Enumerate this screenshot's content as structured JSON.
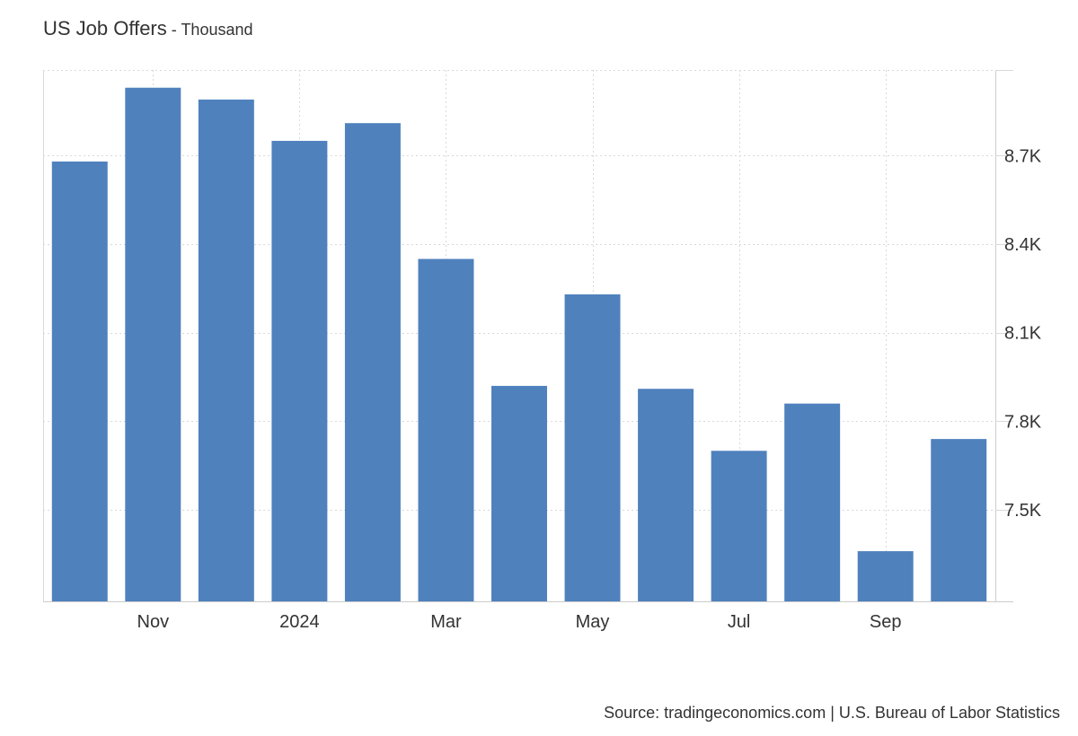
{
  "title": "US Job Offers",
  "subtitle": "Thousand",
  "subtitle_separator": " - ",
  "source": "Source: tradingeconomics.com | U.S. Bureau of Labor Statistics",
  "colors": {
    "bar": "#4f81bd",
    "grid": "#d9d9d9",
    "axis": "#cccccc",
    "text": "#333333"
  },
  "chart_data": {
    "type": "bar",
    "title": "US Job Offers",
    "subtitle": "Thousand",
    "x": [
      "2023-10",
      "2023-11",
      "2023-12",
      "2024-01",
      "2024-02",
      "2024-03",
      "2024-04",
      "2024-05",
      "2024-06",
      "2024-07",
      "2024-08",
      "2024-09",
      "2024-10"
    ],
    "values": [
      8.68,
      8.93,
      8.89,
      8.75,
      8.81,
      8.35,
      7.92,
      8.23,
      7.91,
      7.7,
      7.86,
      7.36,
      7.74
    ],
    "x_tick_labels": [
      {
        "x": "2023-11",
        "label": "Nov"
      },
      {
        "x": "2024-01",
        "label": "2024"
      },
      {
        "x": "2024-03",
        "label": "Mar"
      },
      {
        "x": "2024-05",
        "label": "May"
      },
      {
        "x": "2024-07",
        "label": "Jul"
      },
      {
        "x": "2024-09",
        "label": "Sep"
      }
    ],
    "y_ticks": [
      7.5,
      7.8,
      8.1,
      8.4,
      8.7
    ],
    "y_tick_labels": [
      "7.5K",
      "7.8K",
      "8.1K",
      "8.4K",
      "8.7K"
    ],
    "ylim": [
      7.19,
      8.99
    ],
    "y_axis_side": "right",
    "grid": true,
    "legend": "none"
  }
}
